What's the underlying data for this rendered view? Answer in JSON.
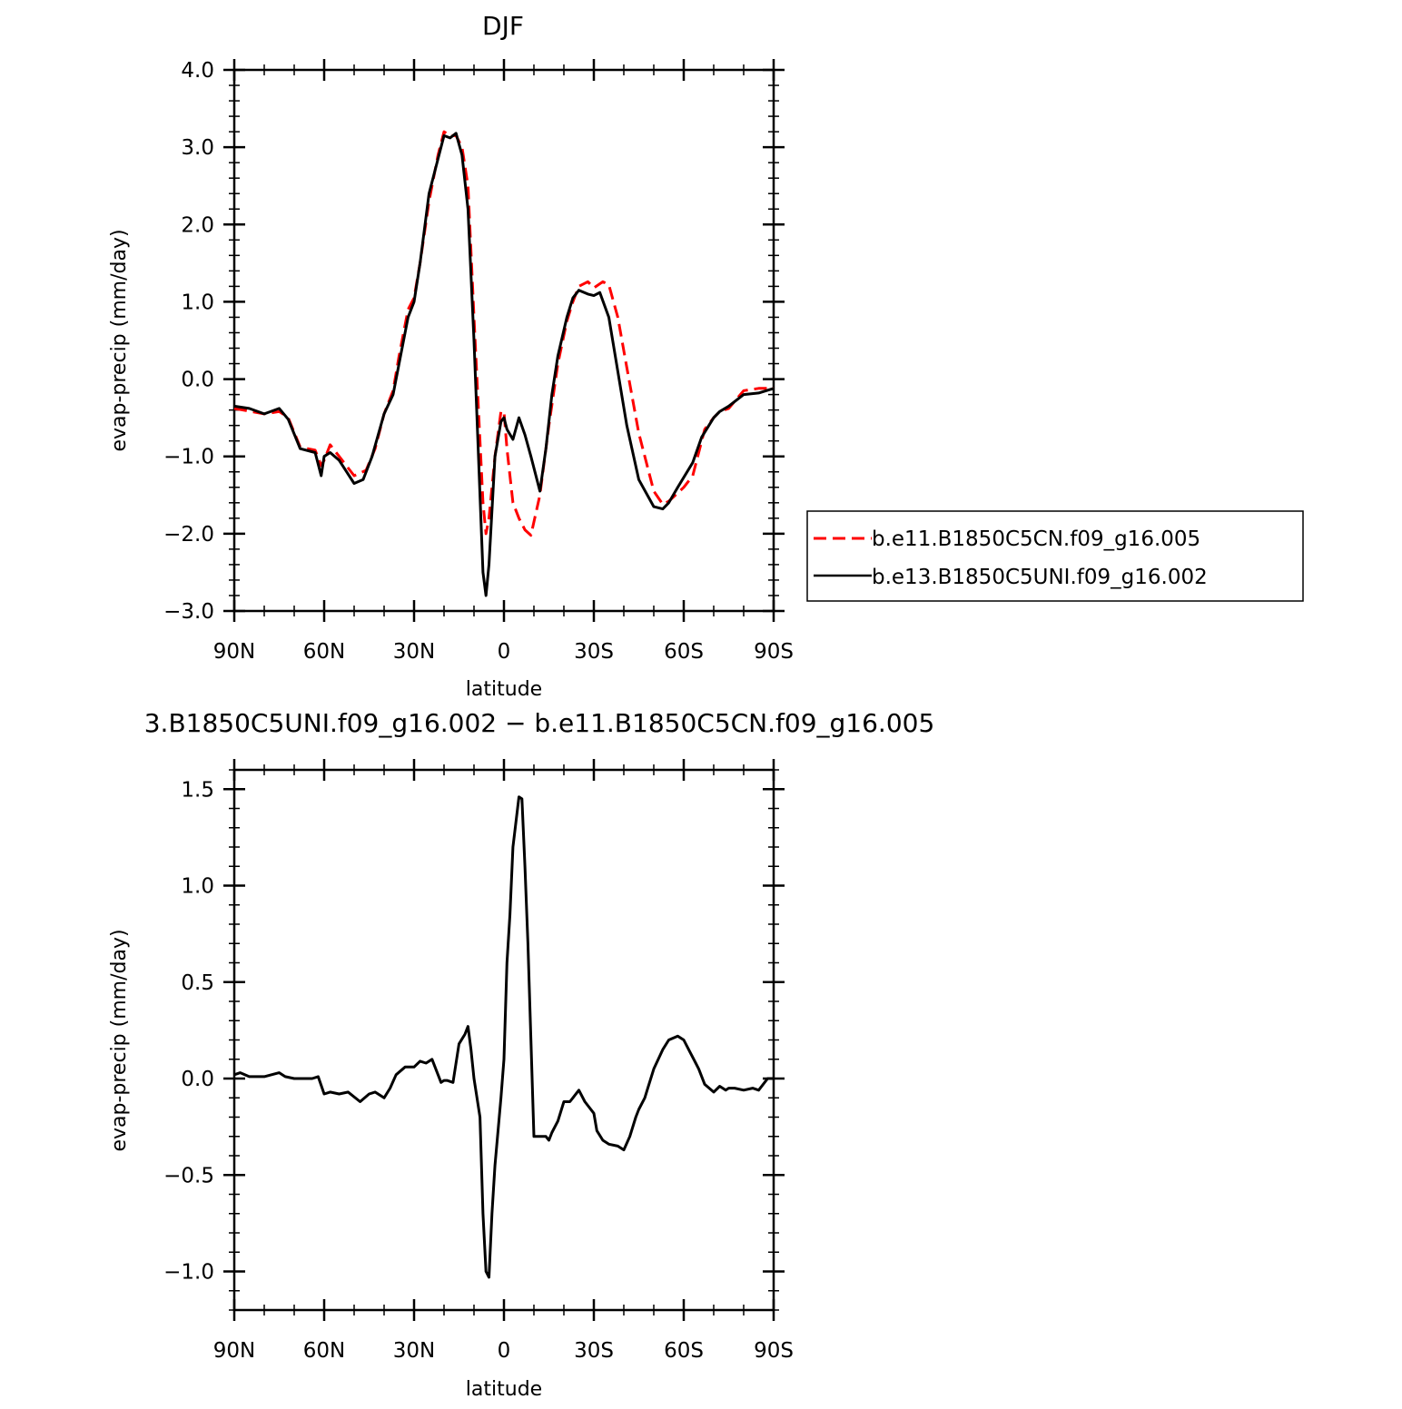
{
  "chart_data": [
    {
      "type": "line",
      "title": "DJF",
      "xlabel": "latitude",
      "ylabel": "evap-precip (mm/day)",
      "xlim": [
        90,
        -90
      ],
      "ylim": [
        -3.0,
        4.0
      ],
      "yticks": [
        -3.0,
        -2.0,
        -1.0,
        0.0,
        1.0,
        2.0,
        3.0,
        4.0
      ],
      "ytick_labels": [
        "−3.0",
        "−2.0",
        "−1.0",
        "0.0",
        "1.0",
        "2.0",
        "3.0",
        "4.0"
      ],
      "xticks": [
        90,
        60,
        30,
        0,
        -30,
        -60,
        -90
      ],
      "xtick_labels": [
        "90N",
        "60N",
        "30N",
        "0",
        "30S",
        "60S",
        "90S"
      ],
      "legend_placement": "right",
      "series": [
        {
          "name": "b.e11.B1850C5CN.f09_g16.005",
          "color": "#ff0000",
          "dash": "dashed",
          "x": [
            90,
            80,
            75,
            72,
            68,
            63,
            61,
            60,
            58,
            55,
            50,
            46,
            43,
            40,
            37,
            35,
            32,
            30,
            28,
            25,
            22,
            20,
            18,
            16,
            14,
            12,
            10,
            8,
            7,
            6,
            5,
            3,
            1,
            0,
            -1,
            -3,
            -5,
            -7,
            -9,
            -12,
            -15,
            -18,
            -21,
            -23,
            -25,
            -28,
            -30,
            -33,
            -35,
            -38,
            -41,
            -45,
            -50,
            -53,
            -55,
            -60,
            -63,
            -67,
            -70,
            -72,
            -75,
            -80,
            -85,
            -90
          ],
          "y": [
            -0.38,
            -0.45,
            -0.42,
            -0.5,
            -0.88,
            -0.92,
            -1.12,
            -1.05,
            -0.85,
            -1.0,
            -1.25,
            -1.18,
            -0.9,
            -0.45,
            -0.15,
            0.3,
            0.9,
            1.05,
            1.5,
            2.3,
            2.9,
            3.2,
            3.15,
            3.15,
            3.0,
            2.5,
            0.8,
            -0.8,
            -1.6,
            -2.0,
            -1.8,
            -1.0,
            -0.42,
            -0.42,
            -0.9,
            -1.6,
            -1.8,
            -1.95,
            -2.02,
            -1.5,
            -0.6,
            0.2,
            0.75,
            1.0,
            1.2,
            1.26,
            1.18,
            1.26,
            1.22,
            0.8,
            0.15,
            -0.7,
            -1.45,
            -1.62,
            -1.58,
            -1.4,
            -1.25,
            -0.65,
            -0.5,
            -0.42,
            -0.38,
            -0.15,
            -0.12,
            -0.12
          ]
        },
        {
          "name": "b.e13.B1850C5UNI.f09_g16.002",
          "color": "#000000",
          "dash": "solid",
          "x": [
            90,
            85,
            80,
            75,
            72,
            68,
            63,
            61,
            60,
            58,
            55,
            50,
            47,
            44,
            40,
            37,
            35,
            32,
            30,
            28,
            25,
            22,
            20,
            18,
            16,
            14,
            12,
            10,
            8,
            7,
            6,
            5,
            3,
            1,
            0,
            -1,
            -3,
            -5,
            -7,
            -9,
            -12,
            -14,
            -16,
            -18,
            -21,
            -23,
            -25,
            -28,
            -30,
            -32,
            -35,
            -38,
            -41,
            -45,
            -50,
            -53,
            -55,
            -58,
            -63,
            -66,
            -70,
            -72,
            -75,
            -80,
            -85,
            -90
          ],
          "y": [
            -0.35,
            -0.38,
            -0.45,
            -0.38,
            -0.52,
            -0.9,
            -0.95,
            -1.25,
            -1.0,
            -0.95,
            -1.05,
            -1.35,
            -1.3,
            -1.0,
            -0.45,
            -0.2,
            0.2,
            0.8,
            1.0,
            1.5,
            2.4,
            2.85,
            3.15,
            3.12,
            3.18,
            2.9,
            2.2,
            0.5,
            -1.5,
            -2.5,
            -2.8,
            -2.4,
            -1.0,
            -0.55,
            -0.5,
            -0.65,
            -0.78,
            -0.5,
            -0.72,
            -1.0,
            -1.45,
            -0.9,
            -0.2,
            0.3,
            0.8,
            1.05,
            1.15,
            1.1,
            1.08,
            1.12,
            0.8,
            0.1,
            -0.6,
            -1.3,
            -1.65,
            -1.68,
            -1.6,
            -1.4,
            -1.08,
            -0.75,
            -0.5,
            -0.42,
            -0.35,
            -0.2,
            -0.18,
            -0.12
          ]
        }
      ]
    },
    {
      "type": "line",
      "title": "3.B1850C5UNI.f09_g16.002 − b.e11.B1850C5CN.f09_g16.005",
      "xlabel": "latitude",
      "ylabel": "evap-precip (mm/day)",
      "xlim": [
        90,
        -90
      ],
      "ylim": [
        -1.2,
        1.6
      ],
      "yticks": [
        -1.0,
        -0.5,
        0.0,
        0.5,
        1.0,
        1.5
      ],
      "ytick_labels": [
        "−1.0",
        "−0.5",
        "0.0",
        "0.5",
        "1.0",
        "1.5"
      ],
      "xticks": [
        90,
        60,
        30,
        0,
        -30,
        -60,
        -90
      ],
      "xtick_labels": [
        "90N",
        "60N",
        "30N",
        "0",
        "30S",
        "60S",
        "90S"
      ],
      "series": [
        {
          "color": "#000000",
          "dash": "solid",
          "x": [
            90,
            88,
            85,
            80,
            75,
            73,
            70,
            67,
            64,
            62,
            60,
            58,
            55,
            52,
            48,
            45,
            43,
            40,
            38,
            36,
            33,
            30,
            28,
            26,
            24,
            22,
            21,
            20,
            19,
            17,
            15,
            13,
            12,
            11,
            10,
            8,
            7,
            6,
            5,
            4,
            3,
            1,
            0,
            -1,
            -2,
            -3,
            -5,
            -6,
            -7,
            -8,
            -9,
            -10,
            -12,
            -14,
            -15,
            -16,
            -18,
            -20,
            -22,
            -23,
            -25,
            -27,
            -30,
            -31,
            -33,
            -35,
            -38,
            -40,
            -42,
            -44,
            -45,
            -47,
            -48,
            -50,
            -53,
            -55,
            -58,
            -60,
            -62,
            -64,
            -65,
            -67,
            -70,
            -72,
            -74,
            -75,
            -77,
            -80,
            -83,
            -85,
            -88,
            -90
          ],
          "y": [
            0.02,
            0.03,
            0.01,
            0.01,
            0.03,
            0.01,
            0.0,
            0.0,
            0.0,
            0.01,
            -0.08,
            -0.07,
            -0.08,
            -0.07,
            -0.12,
            -0.08,
            -0.07,
            -0.1,
            -0.05,
            0.02,
            0.06,
            0.06,
            0.09,
            0.08,
            0.1,
            0.02,
            -0.02,
            -0.01,
            -0.01,
            -0.02,
            0.18,
            0.23,
            0.27,
            0.15,
            0.0,
            -0.2,
            -0.7,
            -1.0,
            -1.03,
            -0.7,
            -0.45,
            -0.1,
            0.1,
            0.6,
            0.85,
            1.2,
            1.46,
            1.45,
            1.1,
            0.7,
            0.2,
            -0.3,
            -0.3,
            -0.3,
            -0.32,
            -0.28,
            -0.22,
            -0.12,
            -0.12,
            -0.1,
            -0.06,
            -0.12,
            -0.18,
            -0.27,
            -0.32,
            -0.34,
            -0.35,
            -0.37,
            -0.3,
            -0.2,
            -0.16,
            -0.1,
            -0.05,
            0.05,
            0.15,
            0.2,
            0.22,
            0.2,
            0.14,
            0.08,
            0.05,
            -0.03,
            -0.07,
            -0.04,
            -0.06,
            -0.05,
            -0.05,
            -0.06,
            -0.05,
            -0.06,
            0.0,
            0.0
          ]
        }
      ]
    }
  ]
}
